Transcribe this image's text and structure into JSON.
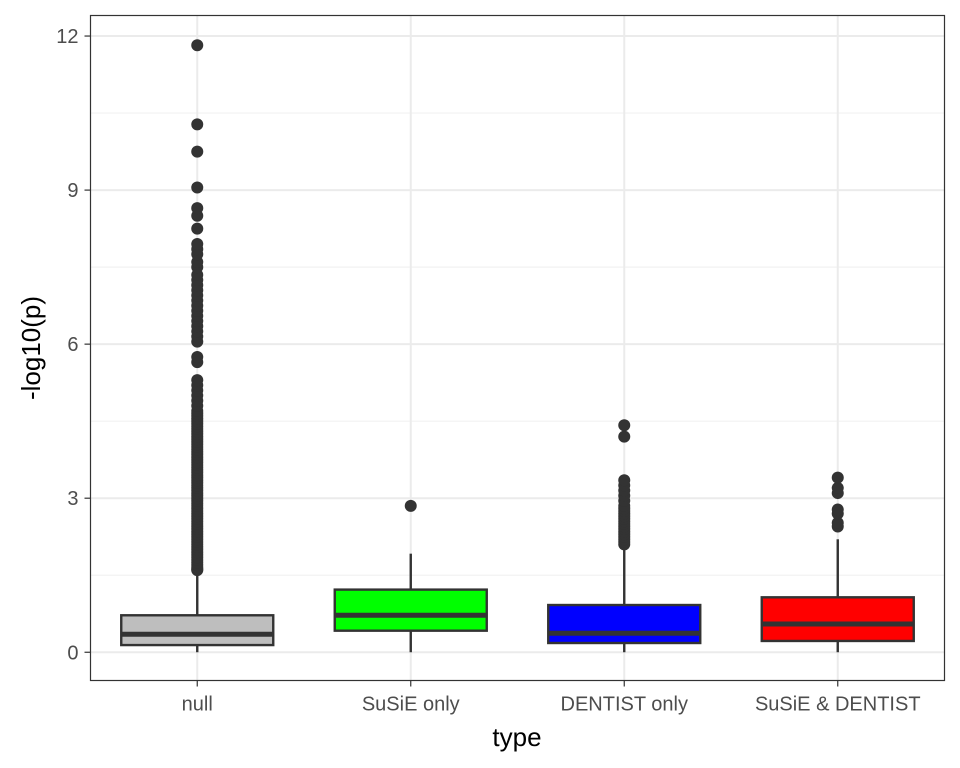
{
  "chart_data": {
    "type": "boxplot",
    "title": "",
    "xlabel": "type",
    "ylabel": "-log10(p)",
    "ylim": [
      -0.55,
      12.4
    ],
    "yticks": [
      0,
      3,
      6,
      9,
      12
    ],
    "yticks_labels": [
      "0",
      "3",
      "6",
      "9",
      "12"
    ],
    "grid": true,
    "legend": "none",
    "categories": [
      "null",
      "SuSiE only",
      "DENTIST only",
      "SuSiE & DENTIST"
    ],
    "boxes": [
      {
        "name": "null",
        "fill": "#bebebe",
        "whisker_low": 0.0,
        "q1": 0.14,
        "median": 0.35,
        "q3": 0.72,
        "whisker_high": 1.55,
        "outliers": [
          1.6,
          1.62,
          1.65,
          1.7,
          1.75,
          1.8,
          1.85,
          1.9,
          1.95,
          2.0,
          2.05,
          2.1,
          2.15,
          2.2,
          2.25,
          2.3,
          2.35,
          2.4,
          2.45,
          2.5,
          2.55,
          2.6,
          2.65,
          2.7,
          2.75,
          2.8,
          2.85,
          2.9,
          2.95,
          3.0,
          3.05,
          3.1,
          3.15,
          3.2,
          3.25,
          3.3,
          3.35,
          3.4,
          3.45,
          3.5,
          3.55,
          3.6,
          3.65,
          3.7,
          3.75,
          3.8,
          3.85,
          3.9,
          3.95,
          4.0,
          4.05,
          4.1,
          4.15,
          4.2,
          4.25,
          4.3,
          4.35,
          4.4,
          4.45,
          4.5,
          4.55,
          4.6,
          4.65,
          4.7,
          4.8,
          4.9,
          5.0,
          5.1,
          5.2,
          5.3,
          5.65,
          5.75,
          6.05,
          6.15,
          6.25,
          6.35,
          6.45,
          6.55,
          6.65,
          6.75,
          6.85,
          6.95,
          7.05,
          7.15,
          7.25,
          7.35,
          7.5,
          7.6,
          7.75,
          7.85,
          7.95,
          8.25,
          8.5,
          8.65,
          9.05,
          9.75,
          10.28,
          11.82
        ]
      },
      {
        "name": "SuSiE only",
        "fill": "#00ff00",
        "whisker_low": 0.0,
        "q1": 0.42,
        "median": 0.72,
        "q3": 1.22,
        "whisker_high": 1.92,
        "outliers": [
          2.85
        ]
      },
      {
        "name": "DENTIST only",
        "fill": "#0000ff",
        "whisker_low": 0.0,
        "q1": 0.18,
        "median": 0.37,
        "q3": 0.92,
        "whisker_high": 2.05,
        "outliers": [
          2.1,
          2.15,
          2.2,
          2.25,
          2.3,
          2.35,
          2.4,
          2.45,
          2.5,
          2.55,
          2.6,
          2.65,
          2.7,
          2.75,
          2.8,
          2.85,
          2.95,
          3.05,
          3.15,
          3.25,
          3.35,
          4.2,
          4.42
        ]
      },
      {
        "name": "SuSiE & DENTIST",
        "fill": "#ff0000",
        "whisker_low": 0.0,
        "q1": 0.22,
        "median": 0.55,
        "q3": 1.07,
        "whisker_high": 2.2,
        "outliers": [
          2.45,
          2.52,
          2.7,
          2.78,
          3.1,
          3.2,
          3.4
        ]
      }
    ],
    "colors": {
      "panel_border": "#333333",
      "grid_major": "#ebebeb",
      "grid_minor": "#f2f2f2",
      "box_line": "#333333",
      "outlier": "#333333"
    }
  }
}
